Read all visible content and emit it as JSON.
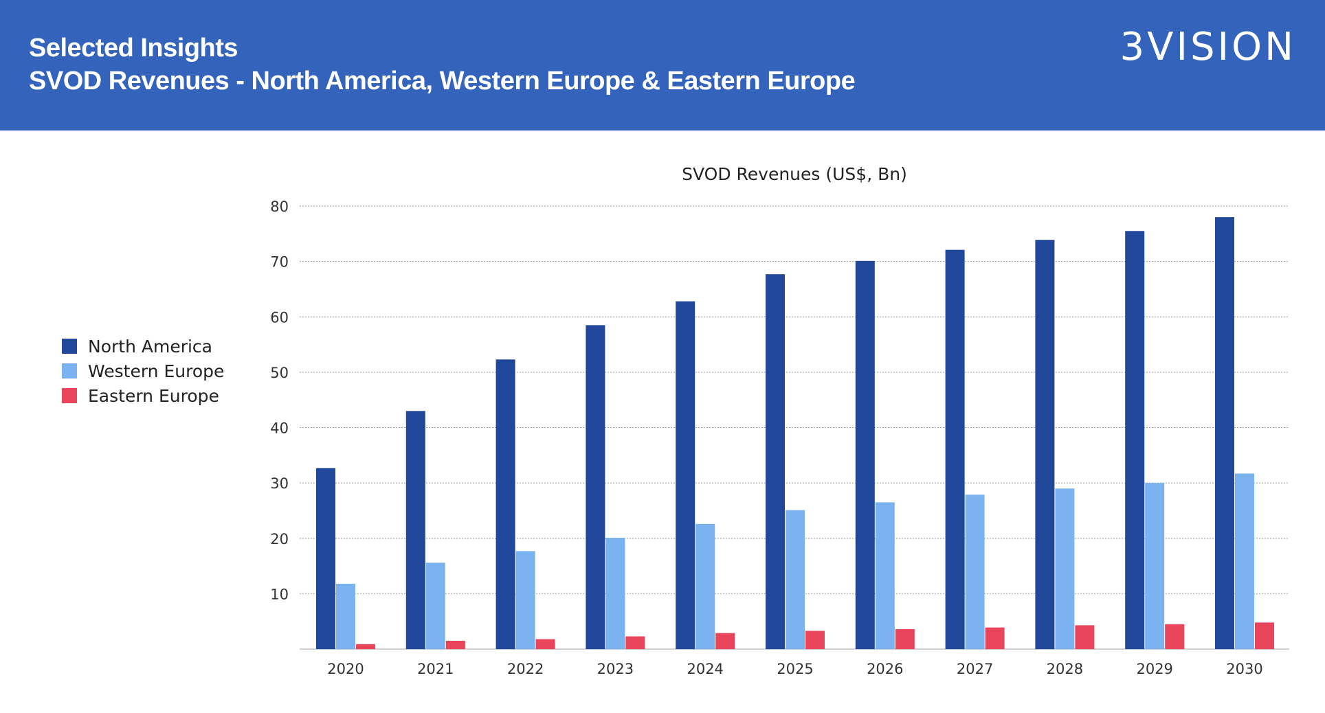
{
  "header": {
    "title_line1": "Selected Insights",
    "title_line2": "SVOD Revenues - North America, Western Europe & Eastern Europe",
    "logo_text": "3VISION"
  },
  "colors": {
    "header_bg": "#3363bb",
    "north_america": "#21479b",
    "western_europe": "#7ab3f0",
    "eastern_europe": "#e8445a"
  },
  "chart_data": {
    "type": "bar",
    "title": "SVOD Revenues (US$, Bn)",
    "xlabel": "",
    "ylabel": "",
    "ylim": [
      0,
      80
    ],
    "yticks": [
      10,
      20,
      30,
      40,
      50,
      60,
      70,
      80
    ],
    "grid": true,
    "legend_position": "left",
    "categories": [
      "2020",
      "2021",
      "2022",
      "2023",
      "2024",
      "2025",
      "2026",
      "2027",
      "2028",
      "2029",
      "2030"
    ],
    "series": [
      {
        "name": "North America",
        "color": "#21479b",
        "values": [
          32.7,
          43.0,
          52.3,
          58.5,
          62.8,
          67.7,
          70.1,
          72.1,
          73.9,
          75.5,
          78.0
        ]
      },
      {
        "name": "Western Europe",
        "color": "#7ab3f0",
        "values": [
          11.8,
          15.6,
          17.7,
          20.1,
          22.6,
          25.1,
          26.5,
          27.9,
          29.0,
          30.0,
          31.7
        ]
      },
      {
        "name": "Eastern Europe",
        "color": "#e8445a",
        "values": [
          0.9,
          1.5,
          1.8,
          2.3,
          2.9,
          3.3,
          3.6,
          3.9,
          4.3,
          4.5,
          4.8
        ]
      }
    ]
  }
}
